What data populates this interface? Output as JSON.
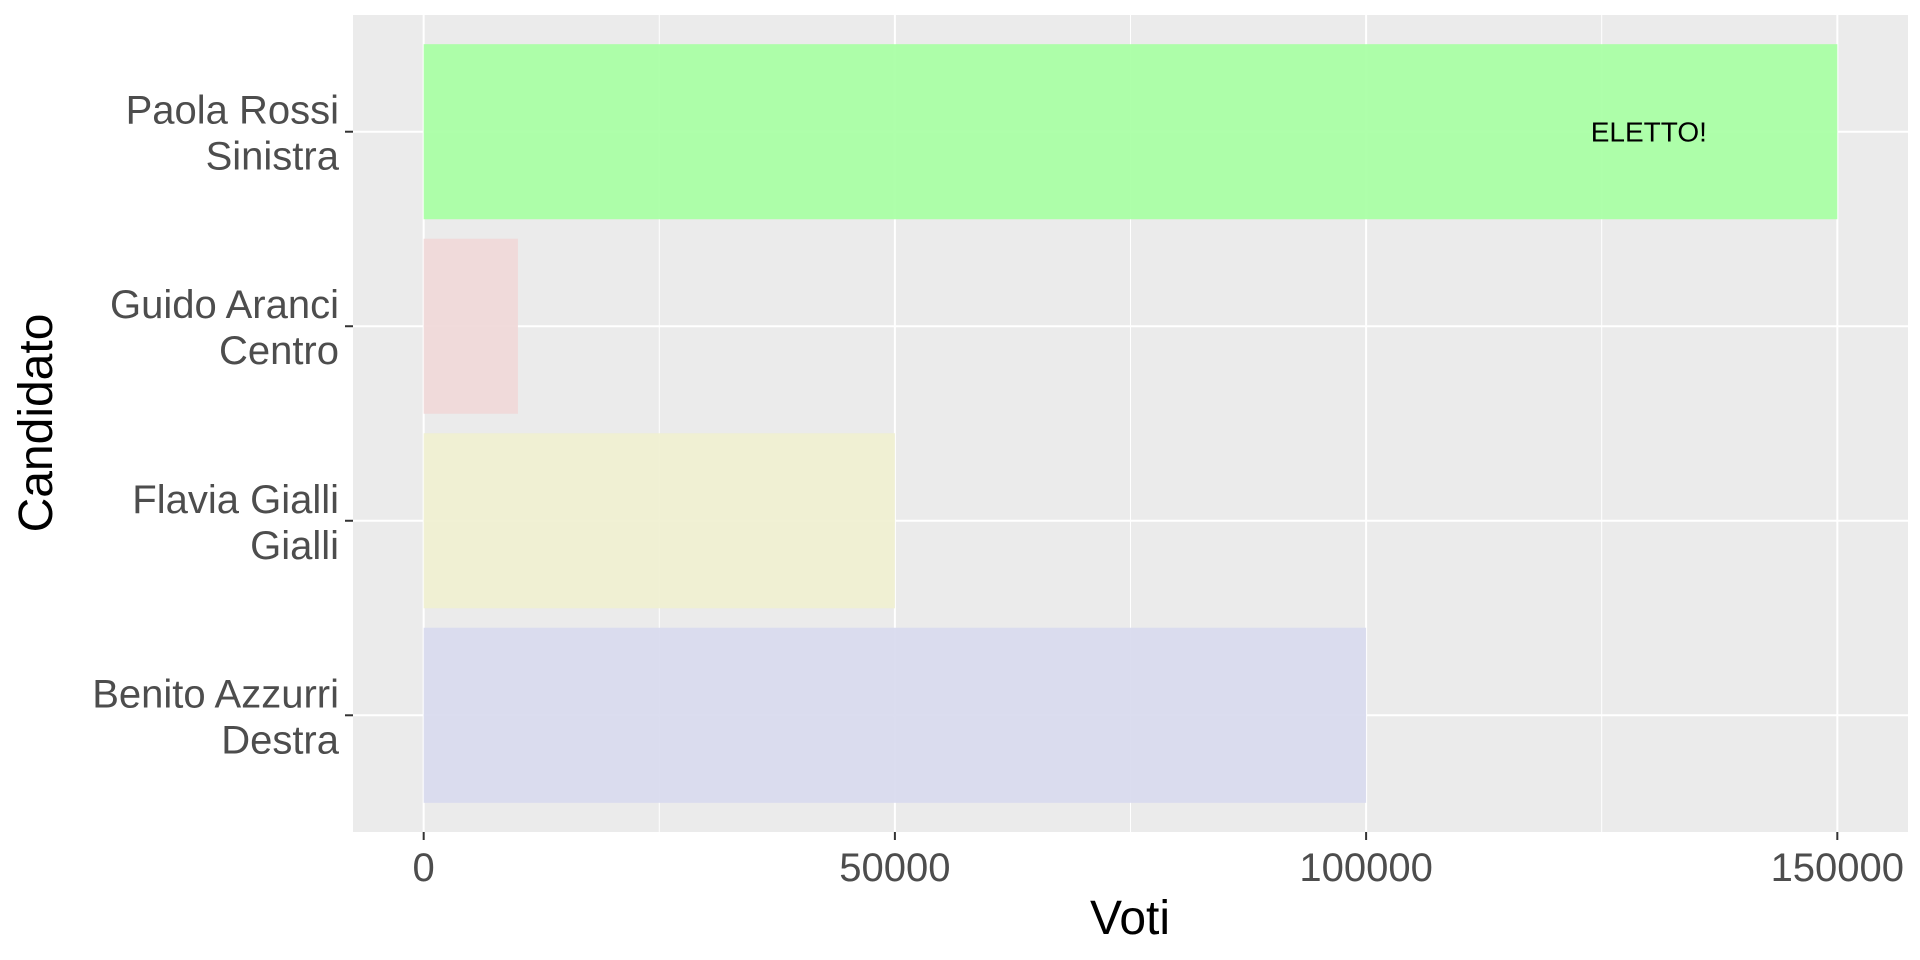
{
  "chart_data": {
    "type": "bar",
    "orientation": "horizontal",
    "title": "",
    "xlabel": "Voti",
    "ylabel": "Candidato",
    "xlim": [
      -7500,
      157500
    ],
    "xticks": [
      0,
      50000,
      100000,
      150000
    ],
    "xtick_labels": [
      "0",
      "50000",
      "100000",
      "150000"
    ],
    "grid": true,
    "legend": "none",
    "panel_background": "#ebebeb",
    "categories": [
      {
        "name": "Paola Rossi",
        "party": "Sinistra"
      },
      {
        "name": "Guido Aranci",
        "party": "Centro"
      },
      {
        "name": "Flavia Gialli",
        "party": "Gialli"
      },
      {
        "name": "Benito Azzurri",
        "party": "Destra"
      }
    ],
    "values": [
      150000,
      10000,
      50000,
      100000
    ],
    "colors": [
      "#aaffa5",
      "#f0d9d9",
      "#f0f0d2",
      "#d9dbee"
    ],
    "annotations": [
      {
        "category_index": 0,
        "x": 130000,
        "text": "ELETTO!"
      }
    ]
  }
}
